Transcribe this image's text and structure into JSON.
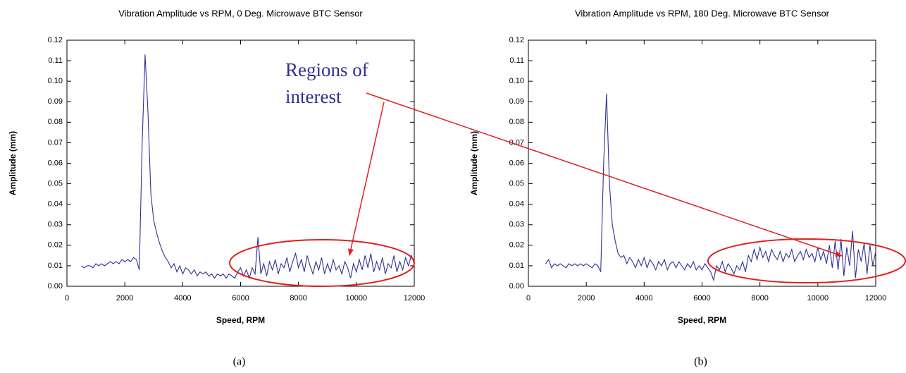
{
  "chart_data": [
    {
      "type": "line",
      "title": "Vibration Amplitude vs RPM, 0 Deg. Microwave BTC Sensor",
      "xlabel": "Speed, RPM",
      "ylabel": "Amplitude (mm)",
      "caption": "(a)",
      "annotation": [
        "Regions of",
        "interest"
      ],
      "color": "#2e3192",
      "xlim": [
        0,
        12000
      ],
      "xticks": [
        0,
        2000,
        4000,
        6000,
        8000,
        10000,
        12000
      ],
      "ylim": [
        0,
        0.12
      ],
      "yticks": [
        {
          "value": 0,
          "label": "0.00"
        },
        0.01,
        0.02,
        0.03,
        0.04,
        0.05,
        0.06,
        0.07,
        0.08,
        0.09,
        {
          "value": 0.1,
          "label": "0.10"
        },
        0.11,
        0.12
      ],
      "x": [
        500,
        600,
        700,
        800,
        900,
        1000,
        1100,
        1200,
        1300,
        1400,
        1500,
        1600,
        1700,
        1800,
        1900,
        2000,
        2100,
        2200,
        2300,
        2400,
        2500,
        2600,
        2700,
        2800,
        2900,
        3000,
        3100,
        3200,
        3300,
        3400,
        3500,
        3600,
        3700,
        3800,
        3900,
        4000,
        4100,
        4200,
        4300,
        4400,
        4500,
        4600,
        4700,
        4800,
        4900,
        5000,
        5100,
        5200,
        5300,
        5400,
        5500,
        5600,
        5700,
        5800,
        5900,
        6000,
        6100,
        6200,
        6300,
        6400,
        6500,
        6600,
        6700,
        6800,
        6900,
        7000,
        7100,
        7200,
        7300,
        7400,
        7500,
        7600,
        7700,
        7800,
        7900,
        8000,
        8100,
        8200,
        8300,
        8400,
        8500,
        8600,
        8700,
        8800,
        8900,
        9000,
        9100,
        9200,
        9300,
        9400,
        9500,
        9600,
        9700,
        9800,
        9900,
        10000,
        10100,
        10200,
        10300,
        10400,
        10500,
        10600,
        10700,
        10800,
        10900,
        11000,
        11100,
        11200,
        11300,
        11400,
        11500,
        11600,
        11700,
        11800,
        11900,
        12000
      ],
      "values": [
        0.01,
        0.009,
        0.01,
        0.01,
        0.009,
        0.011,
        0.01,
        0.011,
        0.01,
        0.011,
        0.012,
        0.011,
        0.012,
        0.011,
        0.013,
        0.012,
        0.013,
        0.012,
        0.014,
        0.013,
        0.008,
        0.07,
        0.113,
        0.085,
        0.045,
        0.032,
        0.026,
        0.021,
        0.017,
        0.014,
        0.012,
        0.009,
        0.011,
        0.007,
        0.01,
        0.006,
        0.009,
        0.008,
        0.006,
        0.008,
        0.005,
        0.007,
        0.006,
        0.007,
        0.005,
        0.006,
        0.004,
        0.006,
        0.005,
        0.006,
        0.004,
        0.006,
        0.005,
        0.004,
        0.007,
        0.009,
        0.005,
        0.008,
        0.004,
        0.009,
        0.006,
        0.024,
        0.006,
        0.011,
        0.005,
        0.012,
        0.008,
        0.013,
        0.006,
        0.011,
        0.009,
        0.014,
        0.007,
        0.012,
        0.016,
        0.009,
        0.013,
        0.007,
        0.015,
        0.01,
        0.006,
        0.012,
        0.008,
        0.014,
        0.006,
        0.011,
        0.007,
        0.013,
        0.008,
        0.01,
        0.006,
        0.012,
        0.009,
        0.004,
        0.011,
        0.007,
        0.013,
        0.008,
        0.015,
        0.009,
        0.016,
        0.007,
        0.012,
        0.008,
        0.014,
        0.006,
        0.011,
        0.009,
        0.015,
        0.007,
        0.012,
        0.008,
        0.014,
        0.01,
        0.015,
        0.011
      ]
    },
    {
      "type": "line",
      "title": "Vibration Amplitude vs RPM, 180 Deg. Microwave BTC Sensor",
      "xlabel": "Speed, RPM",
      "ylabel": "Amplitude (mm)",
      "caption": "(b)",
      "color": "#2e3192",
      "xlim": [
        0,
        12000
      ],
      "xticks": [
        0,
        2000,
        4000,
        6000,
        8000,
        10000,
        12000
      ],
      "ylim": [
        0,
        0.12
      ],
      "yticks": [
        {
          "value": 0,
          "label": "0.00"
        },
        0.01,
        0.02,
        0.03,
        0.04,
        0.05,
        0.06,
        0.07,
        0.08,
        0.09,
        {
          "value": 0.1,
          "label": "0.10"
        },
        0.11,
        0.12
      ],
      "x": [
        600,
        700,
        800,
        900,
        1000,
        1100,
        1200,
        1300,
        1400,
        1500,
        1600,
        1700,
        1800,
        1900,
        2000,
        2100,
        2200,
        2300,
        2400,
        2500,
        2600,
        2700,
        2800,
        2900,
        3000,
        3100,
        3200,
        3300,
        3400,
        3500,
        3600,
        3700,
        3800,
        3900,
        4000,
        4100,
        4200,
        4300,
        4400,
        4500,
        4600,
        4700,
        4800,
        4900,
        5000,
        5100,
        5200,
        5300,
        5400,
        5500,
        5600,
        5700,
        5800,
        5900,
        6000,
        6100,
        6200,
        6300,
        6400,
        6500,
        6600,
        6700,
        6800,
        6900,
        7000,
        7100,
        7200,
        7300,
        7400,
        7500,
        7600,
        7700,
        7800,
        7900,
        8000,
        8100,
        8200,
        8300,
        8400,
        8500,
        8600,
        8700,
        8800,
        8900,
        9000,
        9100,
        9200,
        9300,
        9400,
        9500,
        9600,
        9700,
        9800,
        9900,
        10000,
        10100,
        10200,
        10300,
        10400,
        10500,
        10600,
        10700,
        10800,
        10900,
        11000,
        11100,
        11200,
        11300,
        11400,
        11500,
        11600,
        11700,
        11800,
        11900,
        12000
      ],
      "values": [
        0.011,
        0.013,
        0.009,
        0.011,
        0.01,
        0.011,
        0.01,
        0.009,
        0.011,
        0.01,
        0.011,
        0.01,
        0.011,
        0.01,
        0.011,
        0.01,
        0.009,
        0.011,
        0.01,
        0.007,
        0.06,
        0.094,
        0.05,
        0.03,
        0.022,
        0.016,
        0.014,
        0.015,
        0.011,
        0.014,
        0.012,
        0.009,
        0.013,
        0.01,
        0.014,
        0.009,
        0.013,
        0.011,
        0.008,
        0.012,
        0.01,
        0.013,
        0.008,
        0.011,
        0.012,
        0.009,
        0.012,
        0.01,
        0.008,
        0.011,
        0.009,
        0.012,
        0.008,
        0.01,
        0.008,
        0.011,
        0.009,
        0.007,
        0.003,
        0.01,
        0.008,
        0.012,
        0.007,
        0.011,
        0.009,
        0.006,
        0.01,
        0.008,
        0.012,
        0.007,
        0.015,
        0.012,
        0.018,
        0.013,
        0.019,
        0.014,
        0.017,
        0.012,
        0.018,
        0.015,
        0.013,
        0.017,
        0.012,
        0.016,
        0.014,
        0.018,
        0.012,
        0.015,
        0.017,
        0.013,
        0.018,
        0.014,
        0.016,
        0.012,
        0.019,
        0.013,
        0.017,
        0.011,
        0.02,
        0.009,
        0.022,
        0.008,
        0.023,
        0.005,
        0.019,
        0.01,
        0.027,
        0.004,
        0.018,
        0.012,
        0.021,
        0.006,
        0.02,
        0.01,
        0.017
      ]
    }
  ]
}
